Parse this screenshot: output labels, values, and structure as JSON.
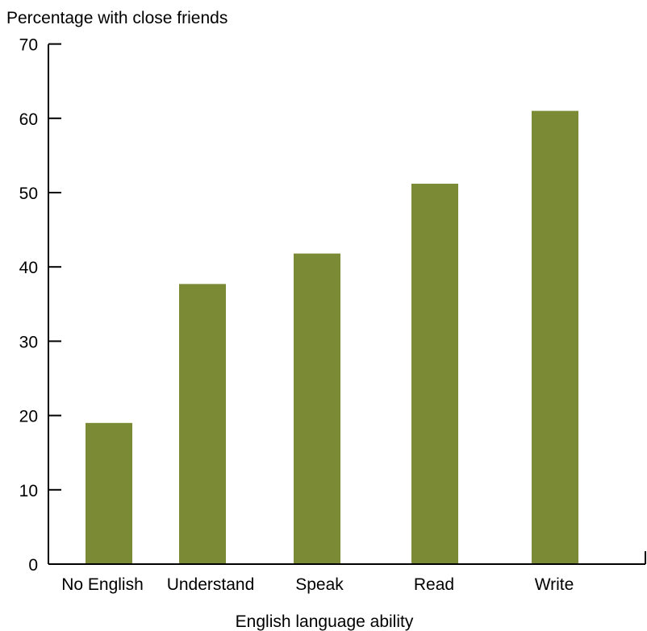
{
  "chart_data": {
    "type": "bar",
    "title": "",
    "ylabel": "Percentage with close friends",
    "xlabel": "English language ability",
    "categories": [
      "No English",
      "Understand",
      "Speak",
      "Read",
      "Write"
    ],
    "values": [
      19,
      37.7,
      41.8,
      51.2,
      61
    ],
    "ylim": [
      0,
      70
    ],
    "yticks": [
      "0",
      "10",
      "20",
      "30",
      "40",
      "50",
      "60",
      "70"
    ],
    "bar_color": "#7a8a35",
    "grid": false,
    "legend": "none"
  }
}
